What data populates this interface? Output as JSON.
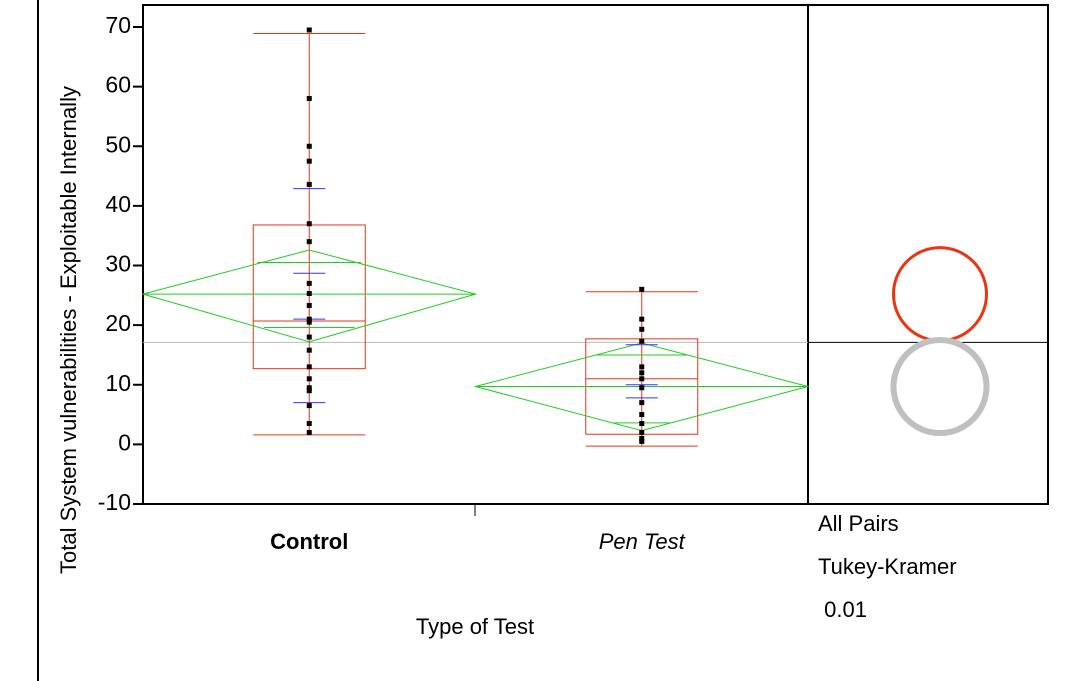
{
  "chart_data": {
    "type": "oneway",
    "y_label": "Total System vulnerabilities - Exploitable Internally",
    "x_label": "Type of Test",
    "categories": [
      "Control",
      "Pen Test"
    ],
    "category_colors": [
      "#ee3311",
      "#000000"
    ],
    "ylim": [
      -10,
      70
    ],
    "yticks": [
      -10,
      0,
      10,
      20,
      30,
      40,
      50,
      60,
      70
    ],
    "grand_mean": 17.1,
    "groups": [
      {
        "points": [
          69.5,
          58,
          50,
          47.5,
          43.6,
          37,
          34,
          27,
          25.3,
          23.3,
          21,
          20.5,
          18,
          15.8,
          13,
          11,
          9.5,
          9,
          6.5,
          3.5,
          2
        ],
        "box": {
          "whisker_low": 1.6,
          "q1": 12.7,
          "median": 20.7,
          "q3": 36.8,
          "whisker_high": 68.9
        },
        "mean": 25.2,
        "ci": [
          17.2,
          32.6
        ],
        "overlap": [
          19.6,
          30.5
        ],
        "quantile_marks": [
          7,
          21,
          28.7,
          42.9
        ]
      },
      {
        "points": [
          26,
          21,
          19.3,
          17.3,
          13,
          12,
          11,
          9.5,
          7,
          5,
          3.5,
          2,
          1,
          0.5
        ],
        "box": {
          "whisker_low": -0.3,
          "q1": 1.7,
          "median": 11,
          "q3": 17.7,
          "whisker_high": 25.6
        },
        "mean": 9.7,
        "ci": [
          2.3,
          17
        ],
        "overlap": [
          3.6,
          15
        ],
        "quantile_marks": [
          7.8,
          10,
          16.7
        ]
      }
    ],
    "circles": [
      {
        "center": 25.2,
        "radius": 7.8,
        "color": "#ee3311"
      },
      {
        "center": 9.7,
        "radius": 7.8,
        "color": "#c0c0c0"
      }
    ],
    "test_lines": [
      "All Pairs",
      "Tukey-Kramer",
      " 0.01"
    ]
  }
}
